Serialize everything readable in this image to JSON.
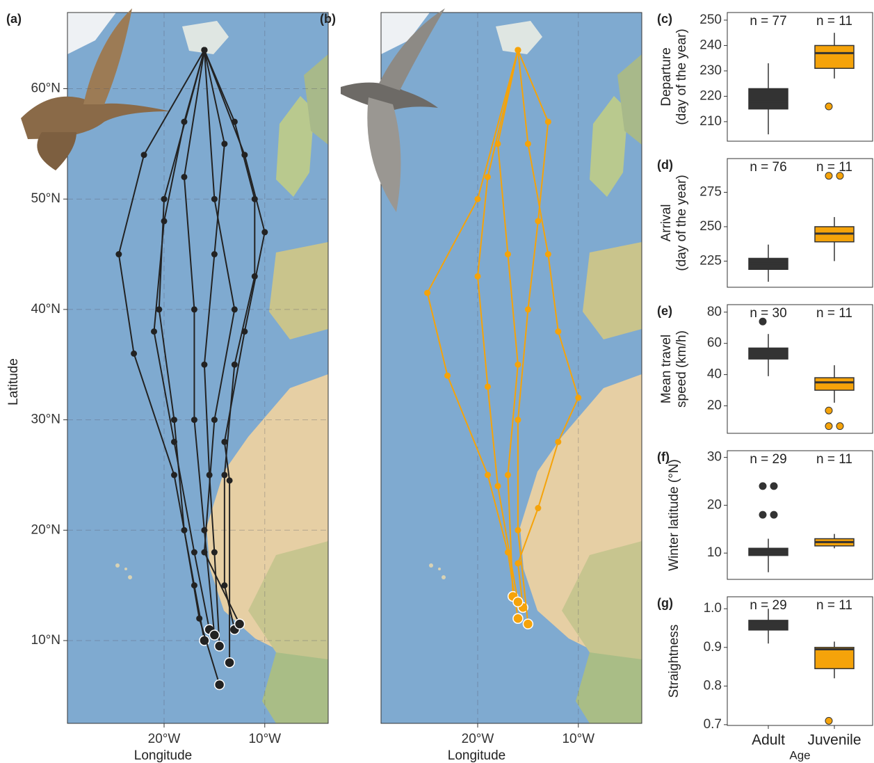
{
  "chart_data": [
    {
      "type": "line",
      "panel_label": "(a)",
      "x_label": "Longitude",
      "y_label": "Latitude",
      "xlim": [
        -29.6,
        -3.7
      ],
      "ylim": [
        2.5,
        66.9
      ],
      "xticks": [
        {
          "value": -20,
          "label": "20°W"
        },
        {
          "value": -10,
          "label": "10°W"
        }
      ],
      "yticks": [
        {
          "value": 10,
          "label": "10°N"
        },
        {
          "value": 20,
          "label": "20°N"
        },
        {
          "value": 30,
          "label": "30°N"
        },
        {
          "value": 40,
          "label": "40°N"
        },
        {
          "value": 50,
          "label": "50°N"
        },
        {
          "value": 60,
          "label": "60°N"
        }
      ],
      "series": [
        {
          "color": "#222222",
          "x": [
            -16,
            -18,
            -20,
            -21,
            -19,
            -17,
            -15.5
          ],
          "values": [
            63.5,
            57,
            48,
            38,
            28,
            18,
            11
          ]
        },
        {
          "color": "#222222",
          "x": [
            -16,
            -13,
            -11,
            -11,
            -13,
            -14,
            -14,
            -13
          ],
          "values": [
            63.5,
            57,
            50,
            43,
            35,
            25,
            15,
            11
          ]
        },
        {
          "color": "#222222",
          "x": [
            -16,
            -22,
            -24.5,
            -23,
            -19,
            -17,
            -16
          ],
          "values": [
            63.5,
            54,
            45,
            36,
            25,
            15,
            10
          ]
        },
        {
          "color": "#222222",
          "x": [
            -16,
            -14,
            -15,
            -16,
            -15.5,
            -15,
            -14.5
          ],
          "values": [
            63.5,
            55,
            45,
            35,
            25,
            18,
            9.5
          ]
        },
        {
          "color": "#222222",
          "x": [
            -16,
            -18,
            -17,
            -17,
            -16,
            -15
          ],
          "values": [
            63.5,
            52,
            40,
            30,
            20,
            10.5
          ]
        },
        {
          "color": "#222222",
          "x": [
            -16,
            -12,
            -10,
            -12,
            -14,
            -13.5,
            -13.5
          ],
          "values": [
            63.5,
            54,
            47,
            38,
            28,
            24.5,
            8
          ]
        },
        {
          "color": "#222222",
          "x": [
            -16,
            -20,
            -20.5,
            -19,
            -18,
            -16.5,
            -14.5
          ],
          "values": [
            63.5,
            50,
            40,
            30,
            20,
            12,
            6
          ]
        },
        {
          "color": "#222222",
          "x": [
            -16,
            -15,
            -13,
            -15,
            -16,
            -12.5
          ],
          "values": [
            63.5,
            50,
            40,
            30,
            18,
            11.5
          ]
        }
      ]
    },
    {
      "type": "line",
      "panel_label": "(b)",
      "x_label": "Longitude",
      "xlim": [
        -29.6,
        -3.7
      ],
      "ylim": [
        2.5,
        66.9
      ],
      "xticks": [
        {
          "value": -20,
          "label": "20°W"
        },
        {
          "value": -10,
          "label": "10°W"
        }
      ],
      "series": [
        {
          "color": "#f5a30a",
          "x": [
            -16,
            -20,
            -25,
            -23,
            -19,
            -17,
            -16
          ],
          "values": [
            63.5,
            50,
            41.5,
            34,
            25,
            18,
            12
          ]
        },
        {
          "color": "#f5a30a",
          "x": [
            -16,
            -15,
            -13,
            -12,
            -10,
            -12,
            -14,
            -16,
            -15.5
          ],
          "values": [
            63.5,
            55,
            45,
            38,
            32,
            28,
            22,
            17,
            13
          ]
        },
        {
          "color": "#f5a30a",
          "x": [
            -16,
            -18,
            -17,
            -16,
            -17,
            -16.5
          ],
          "values": [
            63.5,
            55,
            45,
            35,
            25,
            14
          ]
        },
        {
          "color": "#f5a30a",
          "x": [
            -16,
            -13,
            -14,
            -15,
            -16,
            -16,
            -15
          ],
          "values": [
            63.5,
            57,
            48,
            40,
            30,
            20,
            11.5
          ]
        },
        {
          "color": "#f5a30a",
          "x": [
            -16,
            -19,
            -20,
            -19,
            -18,
            -16
          ],
          "values": [
            63.5,
            52,
            43,
            33,
            24,
            13.5
          ]
        }
      ]
    },
    {
      "type": "box",
      "panel_label": "(c)",
      "y_label": [
        "Departure",
        "(day of the year)"
      ],
      "categories": [
        null,
        null
      ],
      "annotations": [
        "n = 77",
        "n = 11"
      ],
      "colors": [
        "#333333",
        "#f5a30a"
      ],
      "ylim": [
        202.3,
        253
      ],
      "yticks": [
        210,
        220,
        230,
        240,
        250
      ],
      "boxes": [
        {
          "whisker_low": 205,
          "q1": 215,
          "median": 218,
          "q3": 223,
          "whisker_high": 233,
          "outliers": []
        },
        {
          "whisker_low": 227,
          "q1": 231,
          "median": 237,
          "q3": 240,
          "whisker_high": 245,
          "outliers": [
            216
          ]
        }
      ]
    },
    {
      "type": "box",
      "panel_label": "(d)",
      "y_label": [
        "Arrival",
        "(day of the year)"
      ],
      "categories": [
        null,
        null
      ],
      "annotations": [
        "n = 76",
        "n = 11"
      ],
      "colors": [
        "#333333",
        "#f5a30a"
      ],
      "ylim": [
        206,
        299.5
      ],
      "yticks": [
        225,
        250,
        275
      ],
      "boxes": [
        {
          "whisker_low": 210,
          "q1": 219,
          "median": 223,
          "q3": 227,
          "whisker_high": 237,
          "outliers": []
        },
        {
          "whisker_low": 225,
          "q1": 239,
          "median": 245,
          "q3": 250,
          "whisker_high": 257,
          "outliers": [
            287,
            287
          ]
        }
      ]
    },
    {
      "type": "box",
      "panel_label": "(e)",
      "y_label": [
        "Mean travel",
        "speed (km/h)"
      ],
      "categories": [
        null,
        null
      ],
      "annotations": [
        "n = 30",
        "n = 11"
      ],
      "colors": [
        "#333333",
        "#f5a30a"
      ],
      "ylim": [
        2.4,
        84.8
      ],
      "yticks": [
        20,
        40,
        60,
        80
      ],
      "boxes": [
        {
          "whisker_low": 39,
          "q1": 50,
          "median": 53,
          "q3": 57,
          "whisker_high": 66,
          "outliers": [
            74
          ]
        },
        {
          "whisker_low": 22,
          "q1": 30,
          "median": 35,
          "q3": 38,
          "whisker_high": 46,
          "outliers": [
            17,
            7,
            7
          ]
        }
      ]
    },
    {
      "type": "box",
      "panel_label": "(f)",
      "y_label": [
        "Winter latitude (°N)"
      ],
      "categories": [
        null,
        null
      ],
      "annotations": [
        "n = 29",
        "n = 11"
      ],
      "colors": [
        "#333333",
        "#f5a30a"
      ],
      "ylim": [
        4.5,
        31.4
      ],
      "yticks": [
        10,
        20,
        30
      ],
      "boxes": [
        {
          "whisker_low": 6,
          "q1": 9.5,
          "median": 10.3,
          "q3": 11,
          "whisker_high": 13,
          "outliers": [
            18,
            18,
            24,
            24
          ]
        },
        {
          "whisker_low": 11,
          "q1": 11.5,
          "median": 12.3,
          "q3": 13,
          "whisker_high": 14,
          "outliers": []
        }
      ]
    },
    {
      "type": "box",
      "panel_label": "(g)",
      "y_label": [
        "Straightness"
      ],
      "x_label": "Age",
      "categories": [
        "Adult",
        "Juvenile"
      ],
      "annotations": [
        "n = 29",
        "n = 11"
      ],
      "colors": [
        "#333333",
        "#f5a30a"
      ],
      "ylim": [
        0.698,
        1.031
      ],
      "yticks": [
        0.7,
        0.8,
        0.9,
        {
          "value": 1,
          "label": "1.0"
        }
      ],
      "boxes": [
        {
          "whisker_low": 0.91,
          "q1": 0.945,
          "median": 0.955,
          "q3": 0.97,
          "whisker_high": 1.0,
          "outliers": []
        },
        {
          "whisker_low": 0.82,
          "q1": 0.845,
          "median": 0.895,
          "q3": 0.9,
          "whisker_high": 0.915,
          "outliers": [
            0.71
          ]
        }
      ]
    }
  ]
}
